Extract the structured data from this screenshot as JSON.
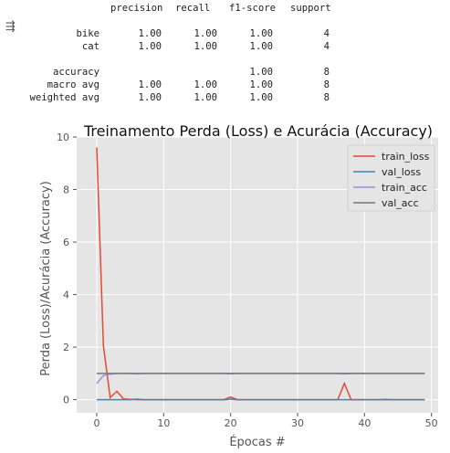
{
  "report": {
    "headers": [
      "precision",
      "recall",
      "f1-score",
      "support"
    ],
    "rows": [
      {
        "label": "bike",
        "values": [
          "1.00",
          "1.00",
          "1.00",
          "4"
        ]
      },
      {
        "label": "cat",
        "values": [
          "1.00",
          "1.00",
          "1.00",
          "4"
        ]
      },
      {
        "label": "accuracy",
        "values": [
          "",
          "",
          "1.00",
          "8"
        ]
      },
      {
        "label": "macro avg",
        "values": [
          "1.00",
          "1.00",
          "1.00",
          "8"
        ]
      },
      {
        "label": "weighted avg",
        "values": [
          "1.00",
          "1.00",
          "1.00",
          "8"
        ]
      }
    ]
  },
  "output_icon": "output-toggle-icon",
  "chart_data": {
    "type": "line",
    "title": "Treinamento Perda (Loss) e Acurácia (Accuracy)",
    "xlabel": "Épocas #",
    "ylabel": "Perda (Loss)/Acurácia (Accuracy)",
    "xlim": [
      -3,
      51
    ],
    "ylim": [
      -0.5,
      10
    ],
    "xticks": [
      0,
      10,
      20,
      30,
      40,
      50
    ],
    "yticks": [
      0,
      2,
      4,
      6,
      8,
      10
    ],
    "grid": true,
    "legend_position": "top-right",
    "style": "ggplot",
    "series": [
      {
        "name": "train_loss",
        "color": "#E24A33",
        "values": [
          9.6,
          2.05,
          0.08,
          0.32,
          0.03,
          0.01,
          0.0,
          0.0,
          0.0,
          0.0,
          0.0,
          0.0,
          0.0,
          0.0,
          0.0,
          0.0,
          0.0,
          0.0,
          0.0,
          0.0,
          0.1,
          0.0,
          0.0,
          0.0,
          0.0,
          0.0,
          0.0,
          0.0,
          0.0,
          0.0,
          0.0,
          0.0,
          0.0,
          0.0,
          0.0,
          0.0,
          0.0,
          0.62,
          0.0,
          0.0,
          0.0,
          0.0,
          0.0,
          0.0,
          0.0,
          0.0,
          0.0,
          0.0,
          0.0,
          0.0
        ]
      },
      {
        "name": "val_loss",
        "color": "#348ABD",
        "values": [
          0.0,
          0.0,
          0.0,
          0.0,
          0.0,
          0.0,
          0.02,
          0.0,
          0.0,
          0.0,
          0.0,
          0.0,
          0.0,
          0.0,
          0.0,
          0.0,
          0.0,
          0.0,
          0.0,
          0.0,
          0.02,
          0.0,
          0.0,
          0.0,
          0.0,
          0.0,
          0.0,
          0.0,
          0.0,
          0.0,
          0.0,
          0.0,
          0.0,
          0.0,
          0.0,
          0.0,
          0.0,
          0.0,
          0.0,
          0.0,
          0.0,
          0.0,
          0.0,
          0.01,
          0.0,
          0.0,
          0.0,
          0.0,
          0.0,
          0.0
        ]
      },
      {
        "name": "train_acc",
        "color": "#988ED5",
        "values": [
          0.62,
          0.92,
          0.97,
          1.0,
          1.0,
          1.0,
          0.98,
          1.0,
          1.0,
          1.0,
          1.0,
          1.0,
          1.0,
          1.0,
          1.0,
          1.0,
          1.0,
          1.0,
          1.0,
          1.0,
          0.98,
          1.0,
          1.0,
          1.0,
          1.0,
          1.0,
          1.0,
          1.0,
          1.0,
          1.0,
          1.0,
          1.0,
          1.0,
          1.0,
          1.0,
          1.0,
          1.0,
          0.98,
          1.0,
          1.0,
          1.0,
          1.0,
          1.0,
          1.0,
          1.0,
          1.0,
          1.0,
          1.0,
          1.0,
          1.0
        ]
      },
      {
        "name": "val_acc",
        "color": "#777777",
        "values": [
          1.0,
          1.0,
          1.0,
          1.0,
          1.0,
          1.0,
          1.0,
          1.0,
          1.0,
          1.0,
          1.0,
          1.0,
          1.0,
          1.0,
          1.0,
          1.0,
          1.0,
          1.0,
          1.0,
          1.0,
          1.0,
          1.0,
          1.0,
          1.0,
          1.0,
          1.0,
          1.0,
          1.0,
          1.0,
          1.0,
          1.0,
          1.0,
          1.0,
          1.0,
          1.0,
          1.0,
          1.0,
          1.0,
          1.0,
          1.0,
          1.0,
          1.0,
          1.0,
          1.0,
          1.0,
          1.0,
          1.0,
          1.0,
          1.0,
          1.0
        ]
      }
    ]
  }
}
